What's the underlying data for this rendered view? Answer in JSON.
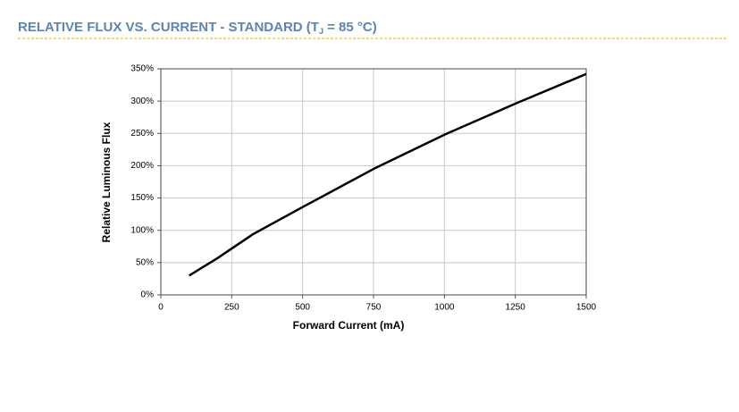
{
  "chart_data": {
    "type": "line",
    "title": {
      "main": "RELATIVE FLUX VS. CURRENT - STANDARD (T",
      "subscript": "J",
      "end": " = 85 °C)"
    },
    "x_label": "Forward Current (mA)",
    "y_label": "Relative Luminous Flux",
    "x": [
      100,
      200,
      325,
      500,
      750,
      1000,
      1250,
      1500
    ],
    "values": [
      30,
      57,
      94,
      136,
      195,
      248,
      296,
      342
    ],
    "color": "#000000",
    "xlim": [
      0,
      1500
    ],
    "xticks": [
      0,
      250,
      500,
      750,
      1000,
      1250,
      1500
    ],
    "ylim": [
      0,
      350
    ],
    "yticks": [
      {
        "value": 0,
        "label": "0%"
      },
      {
        "value": 50,
        "label": "50%"
      },
      {
        "value": 100,
        "label": "100%"
      },
      {
        "value": 150,
        "label": "150%"
      },
      {
        "value": 200,
        "label": "200%"
      },
      {
        "value": 250,
        "label": "250%"
      },
      {
        "value": 300,
        "label": "300%"
      },
      {
        "value": 350,
        "label": "350%"
      }
    ],
    "grid": true
  }
}
